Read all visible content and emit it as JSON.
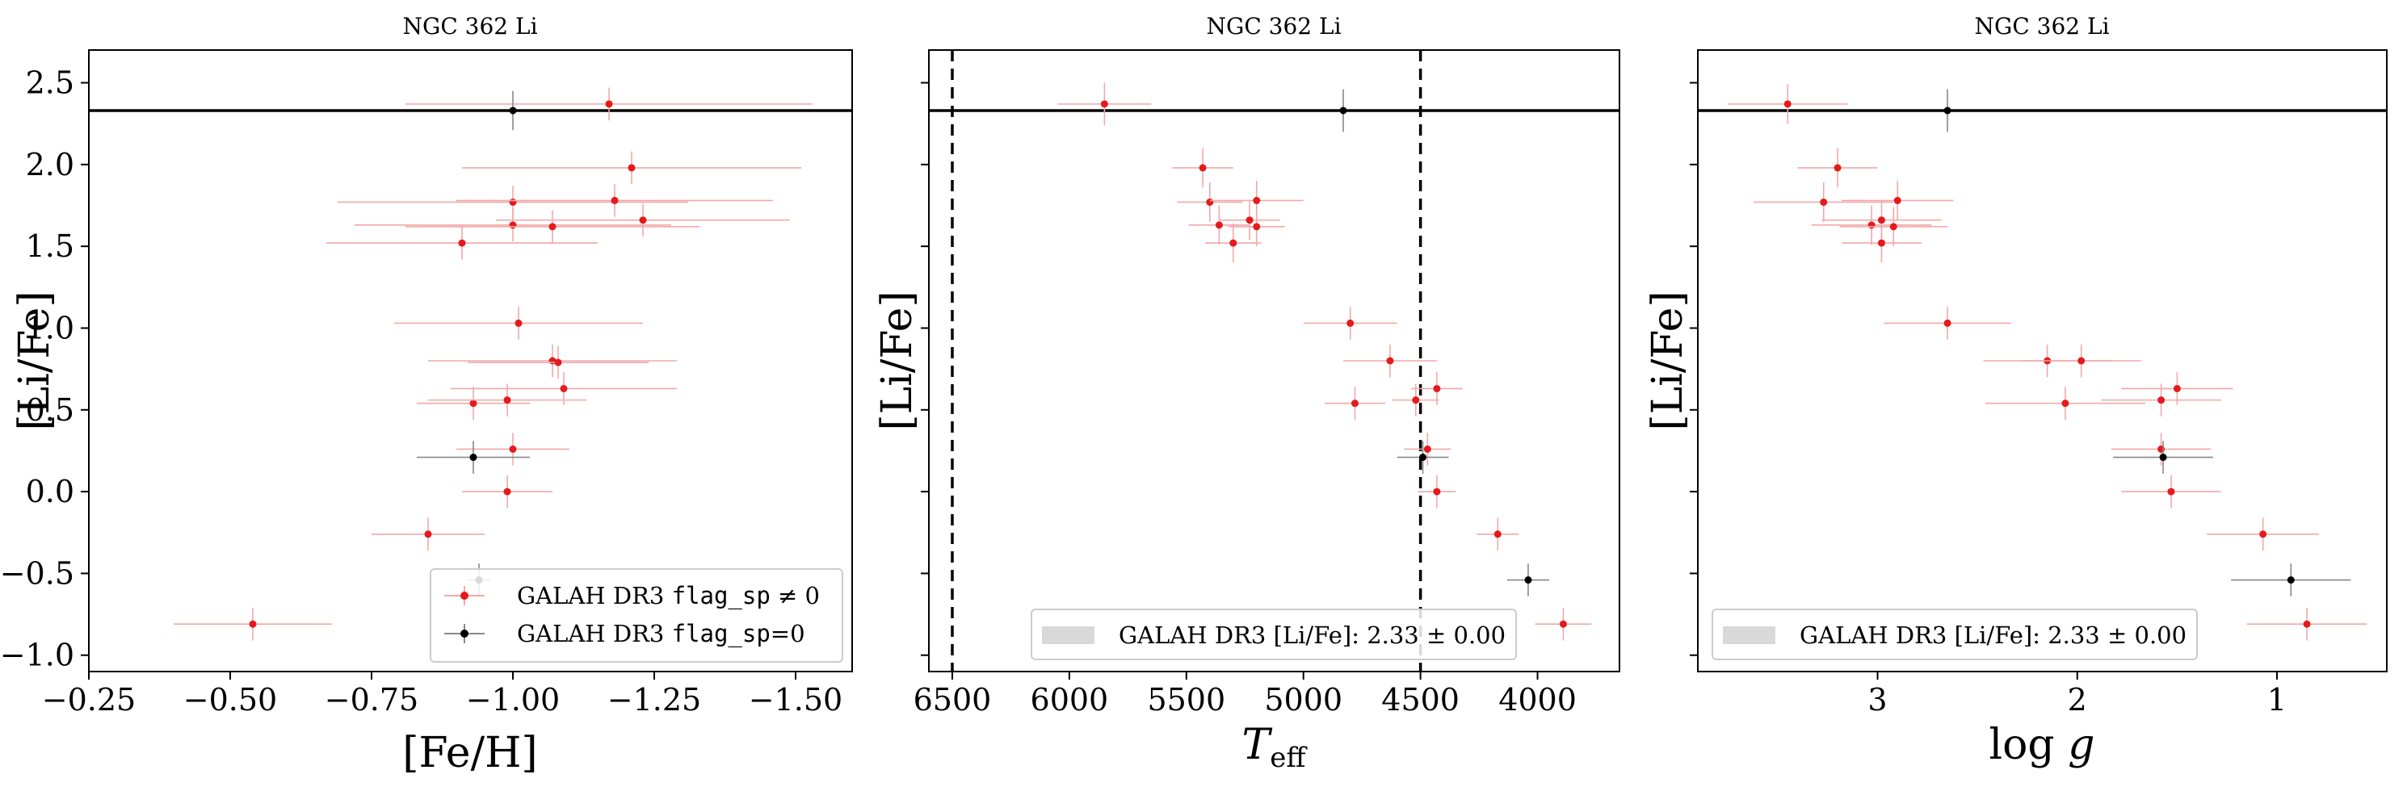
{
  "colors": {
    "flagged": "#e41a1c",
    "flagged_err": "#f2a8a8",
    "unflagged": "#000000",
    "unflagged_err": "#888888",
    "band": "#d9d9d9"
  },
  "chart_data": [
    {
      "type": "scatter",
      "title": "NGC 362 Li",
      "xlabel": "[Fe/H]",
      "ylabel": "[Li/Fe]",
      "xlim": [
        -0.25,
        -1.6
      ],
      "ylim": [
        -1.1,
        2.7
      ],
      "xticks": [
        -0.25,
        -0.5,
        -0.75,
        -1.0,
        -1.25,
        -1.5
      ],
      "xtick_labels": [
        "−0.25",
        "−0.50",
        "−0.75",
        "−1.00",
        "−1.25",
        "−1.50"
      ],
      "yticks": [
        -1.0,
        -0.5,
        0.0,
        0.5,
        1.0,
        1.5,
        2.0,
        2.5
      ],
      "ytick_labels": [
        "−1.0",
        "−0.5",
        "0.0",
        "0.5",
        "1.0",
        "1.5",
        "2.0",
        "2.5"
      ],
      "show_yticklabels": true,
      "hline": 2.33,
      "legend_position": "lower-right",
      "legend": [
        {
          "pre": "GALAH DR3 ",
          "mono": "flag_sp",
          "post": " ≠ 0",
          "kind": "flagged"
        },
        {
          "pre": "GALAH DR3 ",
          "mono": "flag_sp",
          "post": "=0",
          "kind": "unflagged"
        }
      ],
      "series": [
        {
          "kind": "flagged",
          "points": [
            {
              "x": -1.17,
              "y": 2.37,
              "xerr": 0.36,
              "yerr": 0.1
            },
            {
              "x": -1.21,
              "y": 1.98,
              "xerr": 0.3,
              "yerr": 0.1
            },
            {
              "x": -1.0,
              "y": 1.77,
              "xerr": 0.31,
              "yerr": 0.1
            },
            {
              "x": -1.18,
              "y": 1.78,
              "xerr": 0.28,
              "yerr": 0.1
            },
            {
              "x": -1.0,
              "y": 1.63,
              "xerr": 0.28,
              "yerr": 0.1
            },
            {
              "x": -1.07,
              "y": 1.62,
              "xerr": 0.26,
              "yerr": 0.1
            },
            {
              "x": -1.23,
              "y": 1.66,
              "xerr": 0.26,
              "yerr": 0.1
            },
            {
              "x": -0.91,
              "y": 1.52,
              "xerr": 0.24,
              "yerr": 0.1
            },
            {
              "x": -1.01,
              "y": 1.03,
              "xerr": 0.22,
              "yerr": 0.1
            },
            {
              "x": -1.07,
              "y": 0.8,
              "xerr": 0.22,
              "yerr": 0.1
            },
            {
              "x": -1.08,
              "y": 0.79,
              "xerr": 0.16,
              "yerr": 0.1
            },
            {
              "x": -0.93,
              "y": 0.54,
              "xerr": 0.1,
              "yerr": 0.1
            },
            {
              "x": -0.99,
              "y": 0.56,
              "xerr": 0.14,
              "yerr": 0.1
            },
            {
              "x": -1.09,
              "y": 0.63,
              "xerr": 0.2,
              "yerr": 0.1
            },
            {
              "x": -1.0,
              "y": 0.26,
              "xerr": 0.1,
              "yerr": 0.1
            },
            {
              "x": -0.99,
              "y": 0.0,
              "xerr": 0.08,
              "yerr": 0.1
            },
            {
              "x": -0.85,
              "y": -0.26,
              "xerr": 0.1,
              "yerr": 0.1
            },
            {
              "x": -0.54,
              "y": -0.81,
              "xerr": 0.14,
              "yerr": 0.1
            }
          ]
        },
        {
          "kind": "unflagged",
          "points": [
            {
              "x": -1.0,
              "y": 2.33,
              "xerr": 0.0,
              "yerr": 0.12
            },
            {
              "x": -0.93,
              "y": 0.21,
              "xerr": 0.1,
              "yerr": 0.1
            },
            {
              "x": -0.94,
              "y": -0.54,
              "xerr": 0.02,
              "yerr": 0.1
            }
          ]
        }
      ]
    },
    {
      "type": "scatter",
      "title": "NGC 362 Li",
      "xlabel": "T_eff",
      "ylabel": "[Li/Fe]",
      "xlim": [
        6600,
        3650
      ],
      "ylim": [
        -1.1,
        2.7
      ],
      "xticks": [
        6500,
        6000,
        5500,
        5000,
        4500,
        4000
      ],
      "xtick_labels": [
        "6500",
        "6000",
        "5500",
        "5000",
        "4500",
        "4000"
      ],
      "yticks": [
        -1.0,
        -0.5,
        0.0,
        0.5,
        1.0,
        1.5,
        2.0,
        2.5
      ],
      "show_yticklabels": false,
      "hline": 2.33,
      "vlines": [
        6500,
        4500
      ],
      "legend_position": "lower-center",
      "legend": [
        {
          "pre": "GALAH DR3 [Li/Fe]: 2.33 ± 0.00",
          "mono": "",
          "post": "",
          "kind": "band"
        }
      ],
      "series": [
        {
          "kind": "flagged",
          "points": [
            {
              "x": 5850,
              "y": 2.37,
              "xerr": 200,
              "yerr": 0.13
            },
            {
              "x": 5430,
              "y": 1.98,
              "xerr": 130,
              "yerr": 0.12
            },
            {
              "x": 5400,
              "y": 1.77,
              "xerr": 140,
              "yerr": 0.12
            },
            {
              "x": 5200,
              "y": 1.78,
              "xerr": 200,
              "yerr": 0.12
            },
            {
              "x": 5360,
              "y": 1.63,
              "xerr": 130,
              "yerr": 0.12
            },
            {
              "x": 5230,
              "y": 1.66,
              "xerr": 130,
              "yerr": 0.12
            },
            {
              "x": 5200,
              "y": 1.62,
              "xerr": 120,
              "yerr": 0.12
            },
            {
              "x": 5300,
              "y": 1.52,
              "xerr": 120,
              "yerr": 0.12
            },
            {
              "x": 4800,
              "y": 1.03,
              "xerr": 200,
              "yerr": 0.1
            },
            {
              "x": 4630,
              "y": 0.8,
              "xerr": 200,
              "yerr": 0.1
            },
            {
              "x": 4780,
              "y": 0.54,
              "xerr": 130,
              "yerr": 0.1
            },
            {
              "x": 4520,
              "y": 0.56,
              "xerr": 100,
              "yerr": 0.1
            },
            {
              "x": 4430,
              "y": 0.63,
              "xerr": 110,
              "yerr": 0.1
            },
            {
              "x": 4470,
              "y": 0.26,
              "xerr": 100,
              "yerr": 0.1
            },
            {
              "x": 4430,
              "y": 0.0,
              "xerr": 80,
              "yerr": 0.1
            },
            {
              "x": 4170,
              "y": -0.26,
              "xerr": 90,
              "yerr": 0.1
            },
            {
              "x": 3890,
              "y": -0.81,
              "xerr": 120,
              "yerr": 0.1
            }
          ]
        },
        {
          "kind": "unflagged",
          "points": [
            {
              "x": 4830,
              "y": 2.33,
              "xerr": 0,
              "yerr": 0.13
            },
            {
              "x": 4490,
              "y": 0.21,
              "xerr": 110,
              "yerr": 0.1
            },
            {
              "x": 4040,
              "y": -0.54,
              "xerr": 90,
              "yerr": 0.1
            }
          ]
        }
      ]
    },
    {
      "type": "scatter",
      "title": "NGC 362 Li",
      "xlabel": "log g",
      "ylabel": "[Li/Fe]",
      "xlim": [
        3.9,
        0.45
      ],
      "ylim": [
        -1.1,
        2.7
      ],
      "xticks": [
        3,
        2,
        1
      ],
      "xtick_labels": [
        "3",
        "2",
        "1"
      ],
      "yticks": [
        -1.0,
        -0.5,
        0.0,
        0.5,
        1.0,
        1.5,
        2.0,
        2.5
      ],
      "show_yticklabels": false,
      "hline": 2.33,
      "legend_position": "lower-center",
      "legend": [
        {
          "pre": "GALAH DR3 [Li/Fe]: 2.33 ± 0.00",
          "mono": "",
          "post": "",
          "kind": "band"
        }
      ],
      "series": [
        {
          "kind": "flagged",
          "points": [
            {
              "x": 3.45,
              "y": 2.37,
              "xerr": 0.3,
              "yerr": 0.12
            },
            {
              "x": 3.2,
              "y": 1.98,
              "xerr": 0.2,
              "yerr": 0.12
            },
            {
              "x": 3.27,
              "y": 1.77,
              "xerr": 0.35,
              "yerr": 0.12
            },
            {
              "x": 2.9,
              "y": 1.78,
              "xerr": 0.28,
              "yerr": 0.12
            },
            {
              "x": 3.03,
              "y": 1.63,
              "xerr": 0.3,
              "yerr": 0.12
            },
            {
              "x": 2.98,
              "y": 1.66,
              "xerr": 0.3,
              "yerr": 0.12
            },
            {
              "x": 2.92,
              "y": 1.62,
              "xerr": 0.27,
              "yerr": 0.12
            },
            {
              "x": 2.98,
              "y": 1.52,
              "xerr": 0.2,
              "yerr": 0.12
            },
            {
              "x": 2.65,
              "y": 1.03,
              "xerr": 0.32,
              "yerr": 0.1
            },
            {
              "x": 2.15,
              "y": 0.8,
              "xerr": 0.32,
              "yerr": 0.1
            },
            {
              "x": 1.98,
              "y": 0.8,
              "xerr": 0.3,
              "yerr": 0.1
            },
            {
              "x": 2.06,
              "y": 0.54,
              "xerr": 0.4,
              "yerr": 0.1
            },
            {
              "x": 1.58,
              "y": 0.56,
              "xerr": 0.3,
              "yerr": 0.1
            },
            {
              "x": 1.5,
              "y": 0.63,
              "xerr": 0.28,
              "yerr": 0.1
            },
            {
              "x": 1.58,
              "y": 0.26,
              "xerr": 0.25,
              "yerr": 0.1
            },
            {
              "x": 1.53,
              "y": 0.0,
              "xerr": 0.25,
              "yerr": 0.1
            },
            {
              "x": 1.07,
              "y": -0.26,
              "xerr": 0.28,
              "yerr": 0.1
            },
            {
              "x": 0.85,
              "y": -0.81,
              "xerr": 0.3,
              "yerr": 0.1
            }
          ]
        },
        {
          "kind": "unflagged",
          "points": [
            {
              "x": 2.65,
              "y": 2.33,
              "xerr": 0,
              "yerr": 0.13
            },
            {
              "x": 1.57,
              "y": 0.21,
              "xerr": 0.25,
              "yerr": 0.1
            },
            {
              "x": 0.93,
              "y": -0.54,
              "xerr": 0.3,
              "yerr": 0.1
            }
          ]
        }
      ]
    }
  ]
}
